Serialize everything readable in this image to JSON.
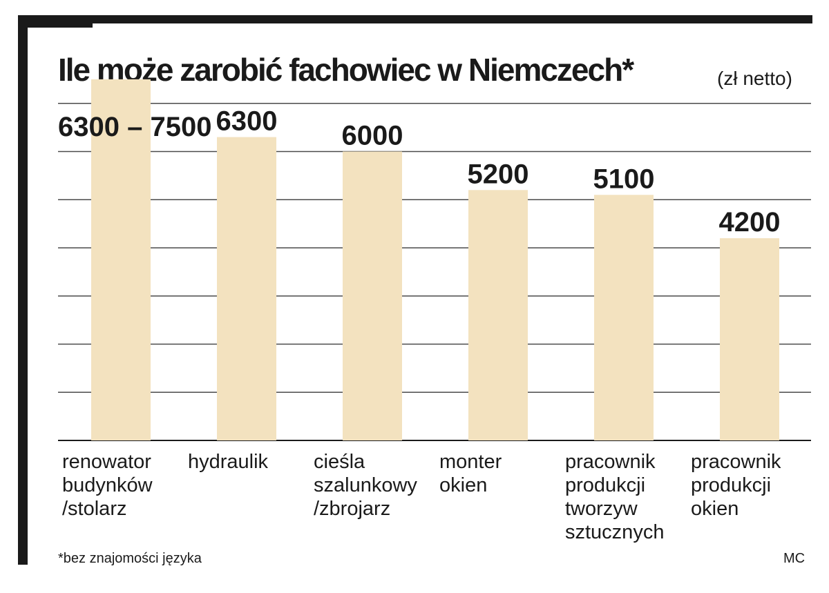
{
  "chart_data": {
    "type": "bar",
    "title": "Ile może zarobić fachowiec w Niemczech*",
    "unit": "(zł netto)",
    "categories": [
      "renowator budynków /stolarz",
      "hydraulik",
      "cieśla szalunkowy /zbrojarz",
      "monter okien",
      "pracownik produkcji tworzyw sztucznych",
      "pracownik produkcji okien"
    ],
    "category_lines": [
      [
        "renowator",
        "budynków",
        "/stolarz"
      ],
      [
        "hydraulik"
      ],
      [
        "cieśla",
        "szalunkowy",
        "/zbrojarz"
      ],
      [
        "monter",
        "okien"
      ],
      [
        "pracownik",
        "produkcji",
        "tworzyw",
        "sztucznych"
      ],
      [
        "pracownik",
        "produkcji",
        "okien"
      ]
    ],
    "series": [
      {
        "values": [
          7500,
          6300,
          6000,
          5200,
          5100,
          4200
        ],
        "ranges": [
          [
            6300,
            7500
          ],
          null,
          null,
          null,
          null,
          null
        ],
        "labels": [
          "6300 – 7500",
          "6300",
          "6000",
          "5200",
          "5100",
          "4200"
        ],
        "color": "#f3e2bf"
      }
    ],
    "ylim": [
      0,
      8000
    ],
    "grid": true,
    "gridline_step": 1000,
    "gridline_color": "#4a4a4a",
    "axis_color": "#1a1a1a",
    "footnote": "*bez znajomości języka",
    "source": "MC"
  }
}
